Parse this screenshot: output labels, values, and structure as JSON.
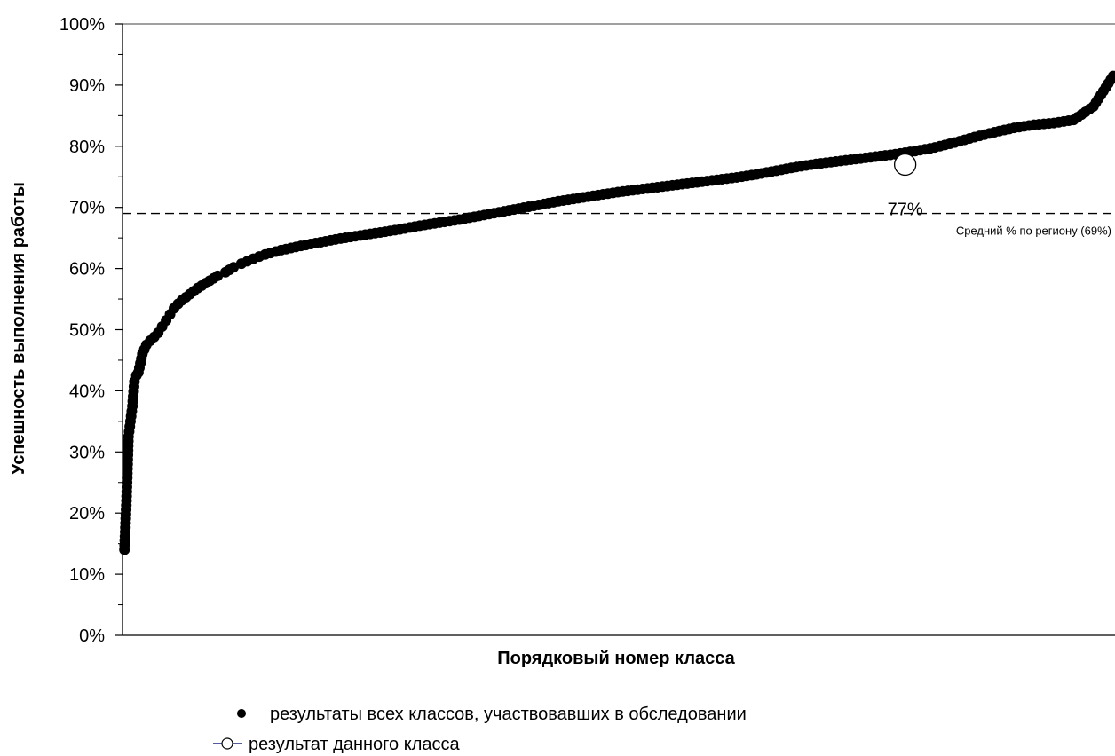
{
  "chart_data": {
    "type": "scatter",
    "xlabel": "Порядковый номер класса",
    "ylabel": "Успешность выполнения работы",
    "ylim": [
      0,
      100
    ],
    "yticks": [
      "0%",
      "10%",
      "20%",
      "30%",
      "40%",
      "50%",
      "60%",
      "70%",
      "80%",
      "90%",
      "100%"
    ],
    "grid": false,
    "legend_position": "bottom",
    "series": [
      {
        "name": "результаты всех классов, участвовавших в обследовании",
        "marker": "filled-circle",
        "color": "#000000",
        "x": [
          1,
          2,
          3,
          4,
          5,
          6,
          7,
          8,
          9,
          10,
          12,
          14,
          16,
          18,
          20,
          22,
          24,
          26,
          28,
          30,
          32,
          34,
          36,
          38,
          40,
          44,
          48,
          52,
          56,
          60,
          66,
          72,
          80,
          90,
          100,
          110,
          120,
          130,
          140,
          150,
          160,
          170,
          180,
          190,
          200,
          210,
          220,
          230,
          240,
          250,
          260,
          270,
          280,
          290,
          300,
          310,
          320,
          330,
          340,
          350,
          360,
          370,
          380,
          390,
          400,
          410,
          420,
          430,
          440,
          450,
          460,
          470,
          480,
          490,
          500
        ],
        "y": [
          14,
          22,
          32.5,
          35,
          37.5,
          41.5,
          42.5,
          43,
          44.5,
          46,
          47.5,
          48.2,
          48.8,
          49.5,
          50.5,
          51.5,
          52.5,
          53.5,
          54.2,
          54.8,
          55.3,
          55.8,
          56.3,
          56.8,
          57.2,
          58,
          58.8,
          59.4,
          60.2,
          60.8,
          61.6,
          62.3,
          63,
          63.7,
          64.3,
          64.9,
          65.4,
          65.9,
          66.4,
          67,
          67.5,
          68,
          68.6,
          69.2,
          69.8,
          70.4,
          71,
          71.5,
          72,
          72.5,
          72.9,
          73.3,
          73.7,
          74.1,
          74.5,
          74.9,
          75.4,
          76,
          76.6,
          77.1,
          77.5,
          77.9,
          78.3,
          78.7,
          79.2,
          79.8,
          80.6,
          81.5,
          82.3,
          83,
          83.5,
          83.8,
          84.3,
          86.5,
          91.5
        ]
      },
      {
        "name": "результат данного класса",
        "marker": "open-circle",
        "color": "#000000",
        "x": [
          395
        ],
        "y": [
          77
        ]
      }
    ],
    "reference_line": {
      "value": 69,
      "style": "dashed",
      "label": "Средний % по региону (69%)"
    },
    "highlight": {
      "value": 77,
      "label": "77%"
    },
    "xlim": [
      0,
      500
    ]
  }
}
